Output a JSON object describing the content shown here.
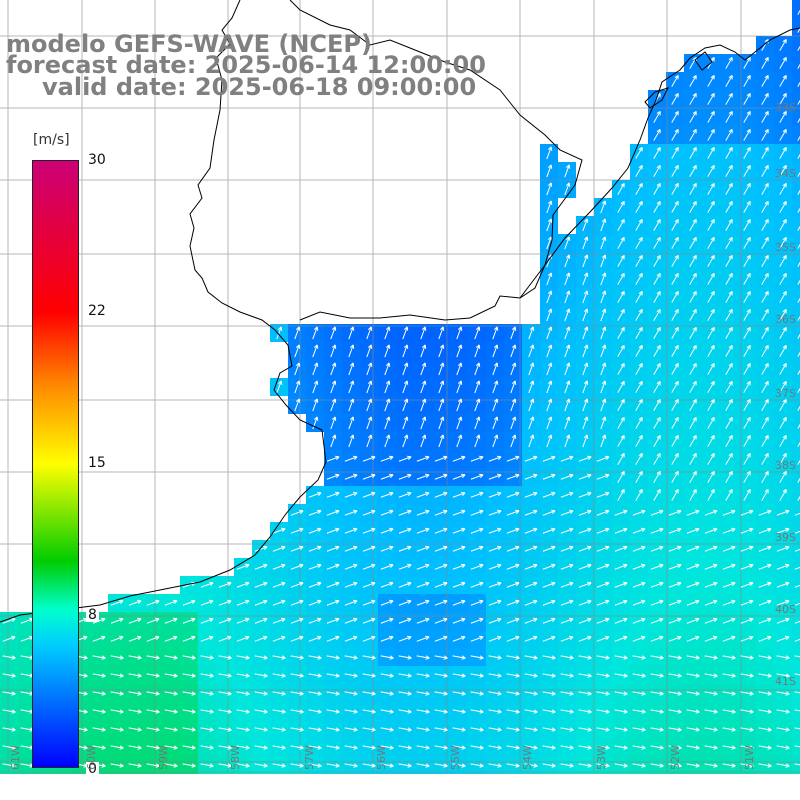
{
  "title": {
    "line1": "modelo GEFS-WAVE (NCEP)",
    "line2": "forecast date: 2025-06-14 12:00:00",
    "line3": "valid date: 2025-06-18 09:00:00"
  },
  "colorbar": {
    "unit": "[m/s]",
    "min": 0,
    "max": 30,
    "ticks": [
      "30",
      "22",
      "15",
      "8",
      "0"
    ],
    "colors": [
      "#cc0077",
      "#ff0000",
      "#ff8800",
      "#ffff00",
      "#00cc00",
      "#00ffcc",
      "#00ccff",
      "#0066ff",
      "#0000ff"
    ]
  },
  "lat_labels": [
    "33S",
    "34S",
    "35S",
    "36S",
    "37S",
    "38S",
    "39S",
    "40S",
    "41S"
  ],
  "lon_labels": [
    "61W",
    "60W",
    "59W",
    "58W",
    "57W",
    "56W",
    "55W",
    "54W",
    "53W",
    "52W",
    "51W"
  ],
  "land_color": "#ffffff",
  "wind_arrow_color": "#ffffff"
}
